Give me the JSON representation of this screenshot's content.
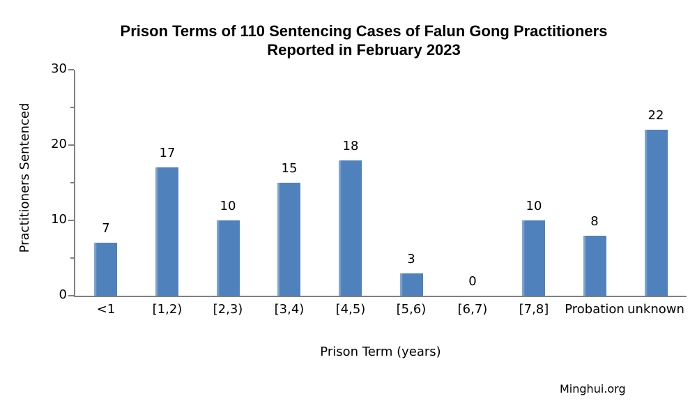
{
  "title": {
    "line1": "Prison Terms of 110 Sentencing Cases of Falun Gong Practitioners",
    "line2": "Reported in February 2023"
  },
  "source": "Minghui.org",
  "chart_data": {
    "type": "bar",
    "title": "Prison Terms of 110 Sentencing Cases of Falun Gong Practitioners Reported in February 2023",
    "categories": [
      "<1",
      "[1,2)",
      "[2,3)",
      "[3,4)",
      "[4,5)",
      "[5,6)",
      "[6,7)",
      "[7,8]",
      "Probation",
      "unknown"
    ],
    "values": [
      7,
      17,
      10,
      15,
      18,
      3,
      0,
      10,
      8,
      22
    ],
    "xlabel": "Prison Term (years)",
    "ylabel": "Practitioners Sentenced",
    "ylim": [
      0,
      30
    ],
    "yticks_major": [
      0,
      10,
      20,
      30
    ],
    "yticks_minor": [
      5,
      15,
      25
    ],
    "grid": false,
    "legend": false,
    "data_labels": true,
    "colors": {
      "bar": "#4f81bd",
      "bar_highlight": "#7fa5d2",
      "axis": "#808080",
      "text": "#000000",
      "background": "#ffffff"
    }
  }
}
